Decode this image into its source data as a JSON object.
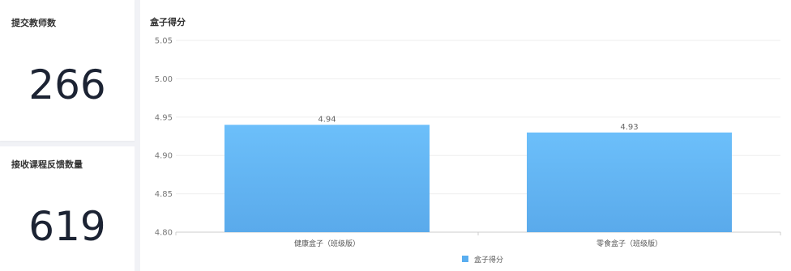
{
  "stats": [
    {
      "label": "提交教师数",
      "value": "266"
    },
    {
      "label": "接收课程反馈数量",
      "value": "619"
    }
  ],
  "chart_data": {
    "type": "bar",
    "title": "盒子得分",
    "categories": [
      "健康盒子（班级版）",
      "零食盒子（班级版）"
    ],
    "series": [
      {
        "name": "盒子得分",
        "values": [
          4.94,
          4.93
        ],
        "color": "#5aaef0"
      }
    ],
    "data_labels": [
      "4.94",
      "4.93"
    ],
    "ylim": [
      4.8,
      5.05
    ],
    "yticks": [
      4.8,
      4.85,
      4.9,
      4.95,
      5.0,
      5.05
    ],
    "ytick_labels": [
      "4.80",
      "4.85",
      "4.90",
      "4.95",
      "5.00",
      "5.05"
    ],
    "grid": true,
    "legend": "bottom-center"
  }
}
